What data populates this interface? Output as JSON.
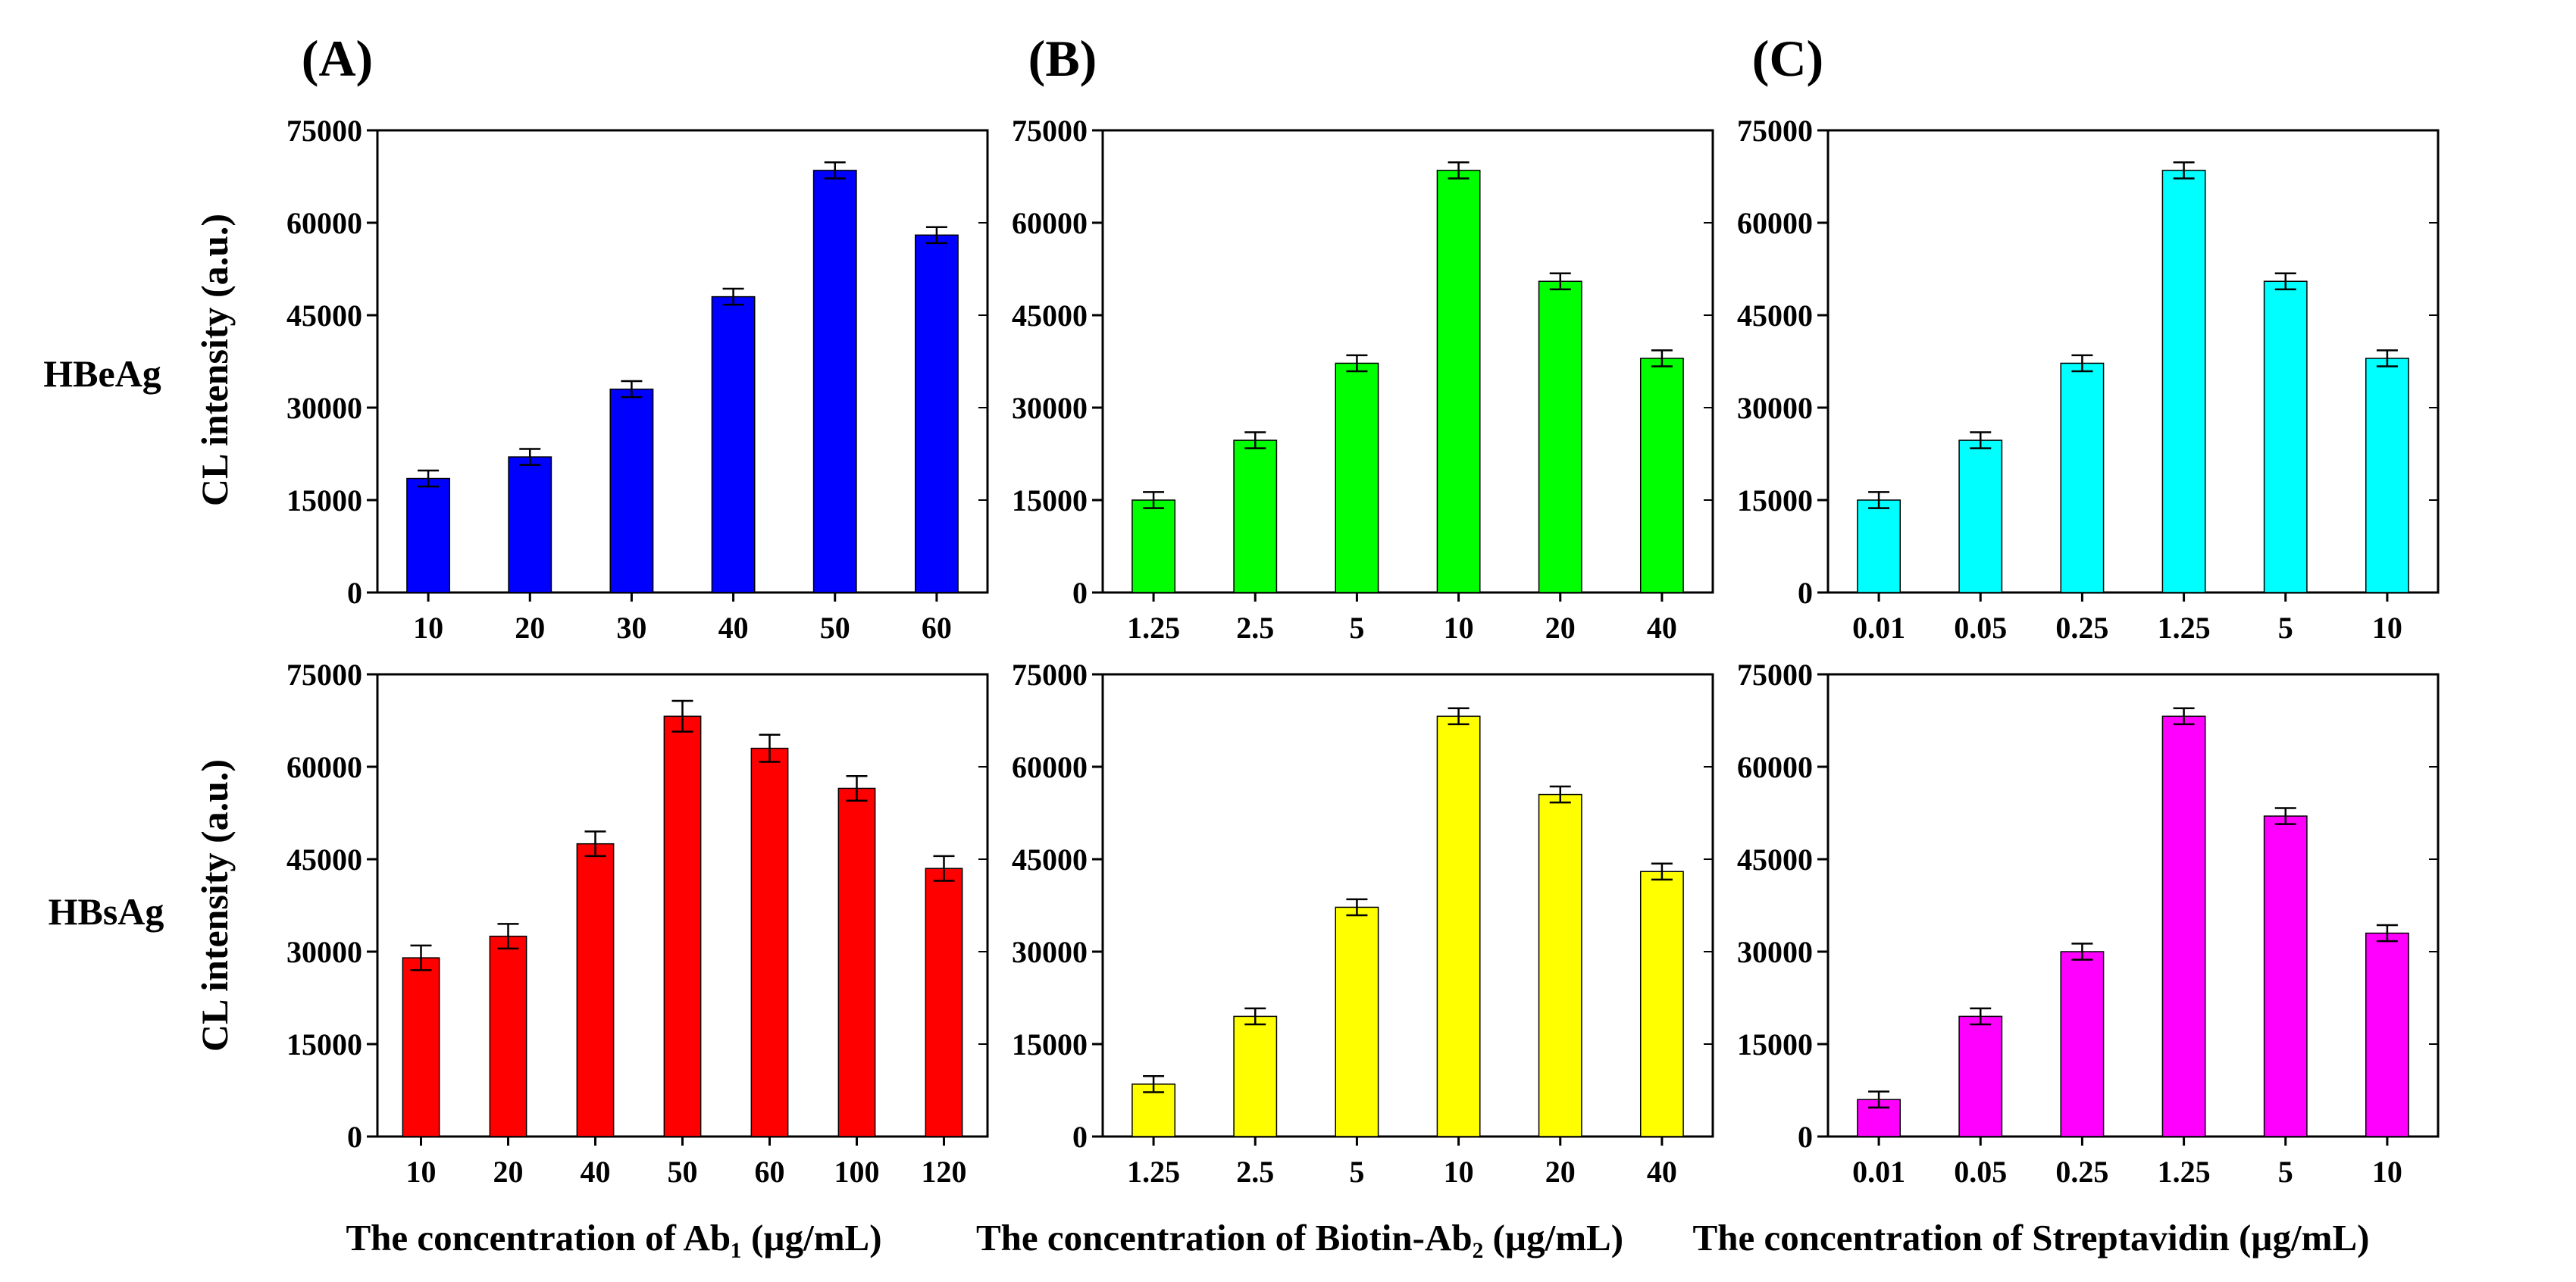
{
  "panel_labels": [
    "(A)",
    "(B)",
    "(C)"
  ],
  "row_labels": [
    "HBeAg",
    "HBsAg"
  ],
  "ylabel": "CL intensity (a.u.)",
  "xlabels": [
    "The concentration of Ab₁ (µg/mL)",
    "The concentration of Biotin-Ab₂ (µg/mL)",
    "The concentration of Streptavidin (µg/mL)"
  ],
  "yticks": [
    "0",
    "15000",
    "30000",
    "45000",
    "60000",
    "75000"
  ],
  "chart_data": [
    {
      "id": "A-HBeAg",
      "type": "bar",
      "ylim": [
        0,
        75000
      ],
      "color": "#0000ff",
      "categories": [
        "10",
        "20",
        "30",
        "40",
        "50",
        "60"
      ],
      "values": [
        18500,
        22000,
        33000,
        48000,
        68500,
        58000
      ],
      "errors": [
        1300,
        1300,
        1300,
        1300,
        1300,
        1300
      ]
    },
    {
      "id": "B-HBeAg",
      "type": "bar",
      "ylim": [
        0,
        75000
      ],
      "color": "#00ff00",
      "categories": [
        "1.25",
        "2.5",
        "5",
        "10",
        "20",
        "40"
      ],
      "values": [
        15000,
        24700,
        37200,
        68500,
        50500,
        38000
      ],
      "errors": [
        1300,
        1300,
        1300,
        1300,
        1300,
        1300
      ]
    },
    {
      "id": "C-HBeAg",
      "type": "bar",
      "ylim": [
        0,
        75000
      ],
      "color": "#00ffff",
      "categories": [
        "0.01",
        "0.05",
        "0.25",
        "1.25",
        "5",
        "10"
      ],
      "values": [
        15000,
        24700,
        37200,
        68500,
        50500,
        38000
      ],
      "errors": [
        1300,
        1300,
        1300,
        1300,
        1300,
        1300
      ]
    },
    {
      "id": "A-HBsAg",
      "type": "bar",
      "ylim": [
        0,
        75000
      ],
      "color": "#ff0000",
      "categories": [
        "10",
        "20",
        "40",
        "50",
        "60",
        "100",
        "120"
      ],
      "values": [
        29000,
        32500,
        47500,
        68200,
        63000,
        56500,
        43500
      ],
      "errors": [
        2000,
        2000,
        2000,
        2500,
        2200,
        2000,
        2000
      ]
    },
    {
      "id": "B-HBsAg",
      "type": "bar",
      "ylim": [
        0,
        75000
      ],
      "color": "#ffff00",
      "categories": [
        "1.25",
        "2.5",
        "5",
        "10",
        "20",
        "40"
      ],
      "values": [
        8500,
        19500,
        37200,
        68200,
        55500,
        43000
      ],
      "errors": [
        1300,
        1300,
        1300,
        1300,
        1300,
        1300
      ]
    },
    {
      "id": "C-HBsAg",
      "type": "bar",
      "ylim": [
        0,
        75000
      ],
      "color": "#ff00ff",
      "categories": [
        "0.01",
        "0.05",
        "0.25",
        "1.25",
        "5",
        "10"
      ],
      "values": [
        6000,
        19500,
        30000,
        68200,
        52000,
        33000
      ],
      "errors": [
        1300,
        1300,
        1300,
        1300,
        1300,
        1300
      ]
    }
  ]
}
